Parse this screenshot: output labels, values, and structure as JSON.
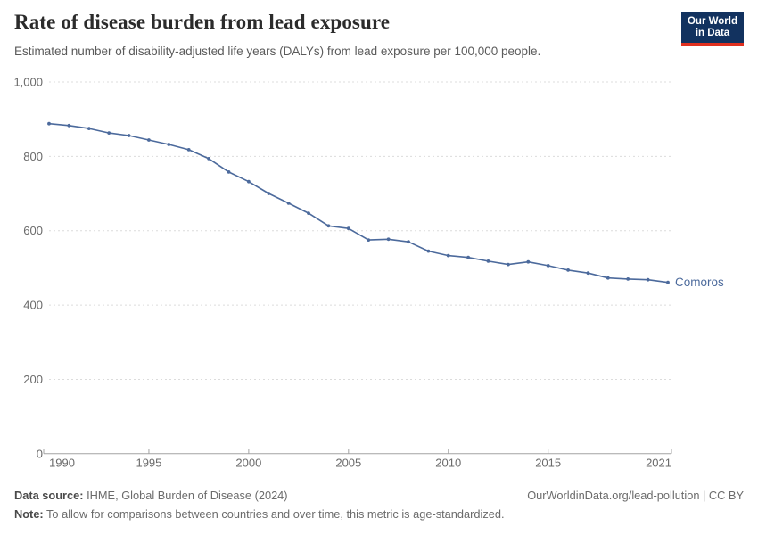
{
  "header": {
    "title": "Rate of disease burden from lead exposure",
    "subtitle": "Estimated number of disability-adjusted life years (DALYs) from lead exposure per 100,000 people.",
    "logo": {
      "line1": "Our World",
      "line2": "in Data",
      "bg_color": "#12325f",
      "accent_color": "#e0301f"
    }
  },
  "chart_data": {
    "type": "line",
    "title": "Rate of disease burden from lead exposure",
    "xlabel": "",
    "ylabel": "",
    "xlim": [
      1990,
      2021
    ],
    "ylim": [
      0,
      1000
    ],
    "x_ticks": [
      1990,
      1995,
      2000,
      2005,
      2010,
      2015,
      2021
    ],
    "y_ticks": [
      0,
      200,
      400,
      600,
      800,
      1000
    ],
    "grid": "horizontal-dashed",
    "legend_position": "end-of-line-label",
    "x": [
      1990,
      1991,
      1992,
      1993,
      1994,
      1995,
      1996,
      1997,
      1998,
      1999,
      2000,
      2001,
      2002,
      2003,
      2004,
      2005,
      2006,
      2007,
      2008,
      2009,
      2010,
      2011,
      2012,
      2013,
      2014,
      2015,
      2016,
      2017,
      2018,
      2019,
      2020,
      2021
    ],
    "series": [
      {
        "name": "Comoros",
        "color": "#4c6a9c",
        "values": [
          888,
          883,
          875,
          863,
          856,
          844,
          832,
          818,
          794,
          758,
          732,
          700,
          674,
          647,
          613,
          606,
          575,
          577,
          570,
          545,
          533,
          528,
          518,
          509,
          516,
          506,
          494,
          486,
          473,
          470,
          468,
          461
        ]
      }
    ]
  },
  "footer": {
    "datasource_label": "Data source:",
    "datasource_text": " IHME, Global Burden of Disease (2024)",
    "note_label": "Note:",
    "note_text": " To allow for comparisons between countries and over time, this metric is age-standardized.",
    "right_text": "OurWorldinData.org/lead-pollution | CC BY"
  }
}
